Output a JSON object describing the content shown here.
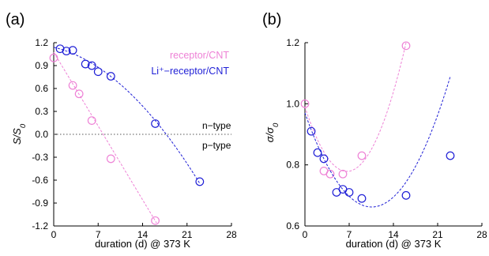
{
  "chart_data": [
    {
      "type": "scatter",
      "panel_label": "(a)",
      "xlabel": "duration (d) @ 373 K",
      "ylabel": "S/S0",
      "xlim": [
        0,
        28
      ],
      "ylim": [
        -1.2,
        1.2
      ],
      "xticks": [
        0,
        7,
        14,
        21,
        28
      ],
      "xtick_labels": [
        "0",
        "7",
        "14",
        "21",
        "28"
      ],
      "yticks": [
        -1.2,
        -0.9,
        -0.6,
        -0.3,
        0.0,
        0.3,
        0.6,
        0.9,
        1.2
      ],
      "ytick_labels": [
        "-1.2",
        "-0.9",
        "-0.6",
        "-0.3",
        "0.0",
        "0.3",
        "0.6",
        "0.9",
        "1.2"
      ],
      "grid": false,
      "legend_position": "top-right",
      "reference_line": {
        "y": 0,
        "style": "dotted",
        "color": "#555555"
      },
      "region_labels": {
        "above": "n−type",
        "below": "p−type"
      },
      "series": [
        {
          "name": "receptor/CNT",
          "color": "#ee82d6",
          "points": [
            [
              0,
              1.0
            ],
            [
              3,
              0.64
            ],
            [
              4,
              0.53
            ],
            [
              6,
              0.18
            ],
            [
              9,
              -0.32
            ],
            [
              16,
              -1.13
            ]
          ],
          "fit": {
            "kind": "linear",
            "x_range": [
              0,
              16.2
            ],
            "coef": [
              1.075,
              -0.138
            ]
          }
        },
        {
          "name": "Li⁺−receptor/CNT",
          "color": "#1f1fd6",
          "points": [
            [
              1,
              1.12
            ],
            [
              2,
              1.09
            ],
            [
              3,
              1.1
            ],
            [
              5,
              0.92
            ],
            [
              6,
              0.9
            ],
            [
              7,
              0.82
            ],
            [
              9,
              0.76
            ],
            [
              16,
              0.14
            ],
            [
              23,
              -0.62
            ]
          ],
          "fit": {
            "kind": "quadratic",
            "x_range": [
              0,
              23
            ],
            "coef": [
              1.14,
              -0.02,
              -0.0025
            ]
          }
        }
      ]
    },
    {
      "type": "scatter",
      "panel_label": "(b)",
      "xlabel": "duration (d) @ 373 K",
      "ylabel": "σ/σ0",
      "xlim": [
        0,
        28
      ],
      "ylim": [
        0.6,
        1.2
      ],
      "xticks": [
        0,
        7,
        14,
        21,
        28
      ],
      "xtick_labels": [
        "0",
        "7",
        "14",
        "21",
        "28"
      ],
      "yticks": [
        0.6,
        0.8,
        1.0,
        1.2
      ],
      "ytick_labels": [
        "0.6",
        "0.8",
        "1.0",
        "1.2"
      ],
      "grid": false,
      "series": [
        {
          "name": "receptor/CNT",
          "color": "#ee82d6",
          "points": [
            [
              0,
              1.0
            ],
            [
              3,
              0.78
            ],
            [
              4,
              0.77
            ],
            [
              6,
              0.77
            ],
            [
              9,
              0.83
            ],
            [
              16,
              1.19
            ]
          ],
          "fit": {
            "kind": "quadratic",
            "x_range": [
              0,
              16
            ],
            "coef": [
              0.99,
              -0.0637,
              0.0048
            ]
          }
        },
        {
          "name": "Li⁺−receptor/CNT",
          "color": "#1f1fd6",
          "points": [
            [
              1,
              0.91
            ],
            [
              2,
              0.84
            ],
            [
              3,
              0.82
            ],
            [
              5,
              0.71
            ],
            [
              6,
              0.72
            ],
            [
              7,
              0.71
            ],
            [
              9,
              0.69
            ],
            [
              16,
              0.7
            ],
            [
              23,
              0.83
            ]
          ],
          "fit": {
            "kind": "quadratic",
            "x_range": [
              0,
              23
            ],
            "coef": [
              0.97,
              -0.0583,
              0.00276
            ]
          }
        }
      ]
    }
  ]
}
